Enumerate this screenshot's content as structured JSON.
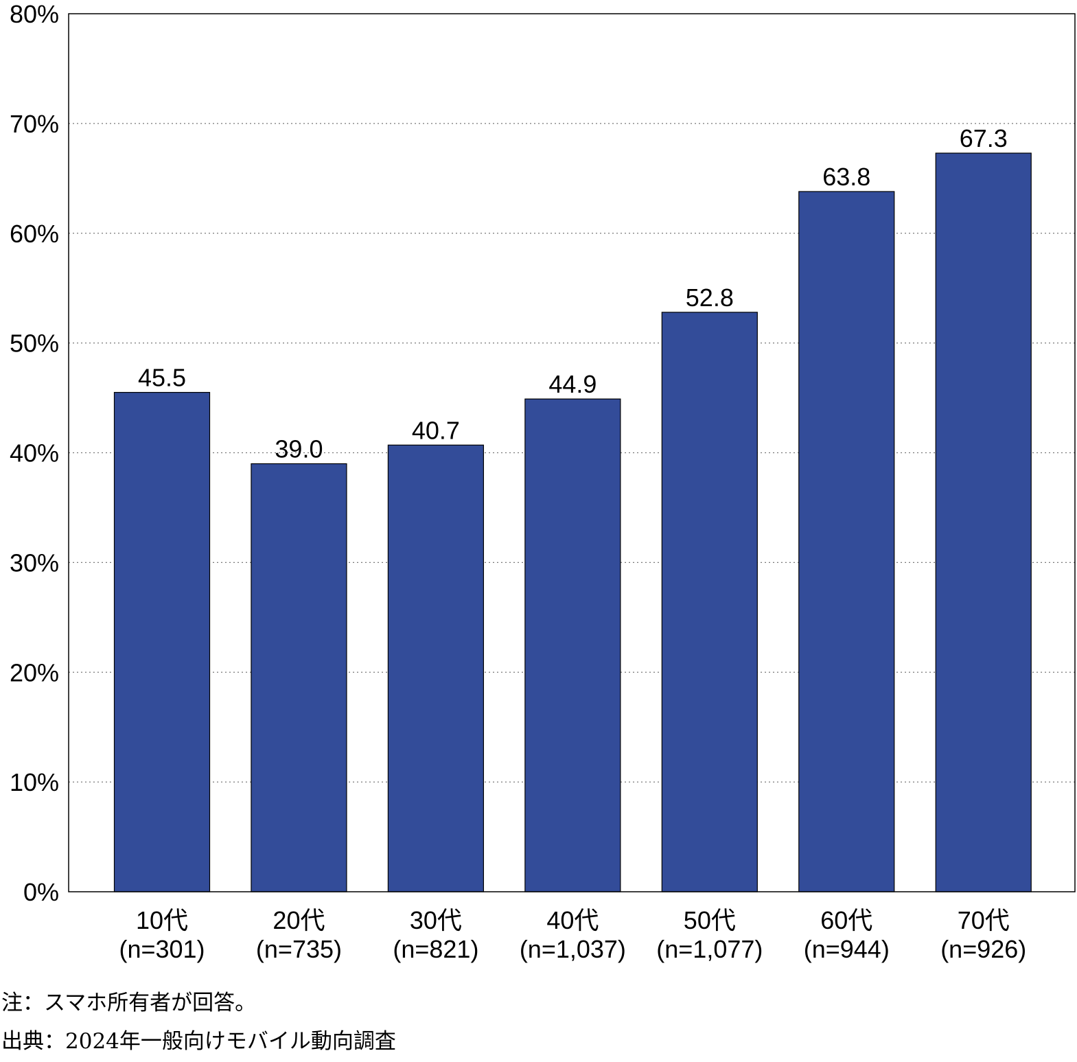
{
  "chart_data": {
    "type": "bar",
    "title": "",
    "xlabel": "",
    "ylabel": "",
    "categories": [
      "10代",
      "20代",
      "30代",
      "40代",
      "50代",
      "60代",
      "70代"
    ],
    "sample_sizes": [
      "(n=301)",
      "(n=735)",
      "(n=821)",
      "(n=1,037)",
      "(n=1,077)",
      "(n=944)",
      "(n=926)"
    ],
    "values": [
      45.5,
      39.0,
      40.7,
      44.9,
      52.8,
      63.8,
      67.3
    ],
    "value_labels": [
      "45.5",
      "39.0",
      "40.7",
      "44.9",
      "52.8",
      "63.8",
      "67.3"
    ],
    "ylim": [
      0,
      80
    ],
    "yticks": [
      0,
      10,
      20,
      30,
      40,
      50,
      60,
      70,
      80
    ],
    "ytick_labels": [
      "0%",
      "10%",
      "20%",
      "30%",
      "40%",
      "50%",
      "60%",
      "70%",
      "80%"
    ],
    "grid": "horizontal dotted",
    "legend": "none",
    "bar_color": "#334c99",
    "bar_edge_color": "#000000"
  },
  "notes": {
    "note": "注：スマホ所有者が回答。",
    "source": "出典：2024年一般向けモバイル動向調査"
  }
}
